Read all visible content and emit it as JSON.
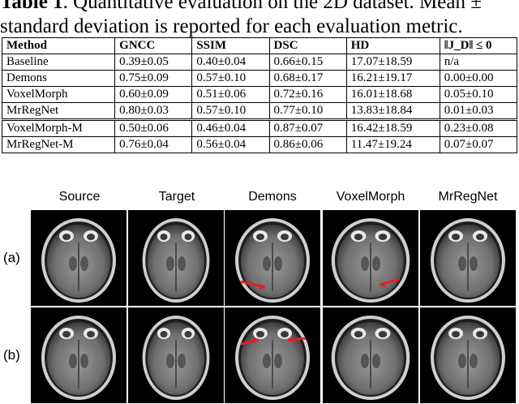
{
  "caption": {
    "label": "Table 1",
    "text": ". Quantitative evaluation on the 2D dataset. Mean ±",
    "text2": "standard deviation is reported for each evaluation metric."
  },
  "table": {
    "headers": [
      "Method",
      "GNCC",
      "SSIM",
      "DSC",
      "HD",
      "‖J_D‖ ≤ 0"
    ],
    "rows": [
      [
        "Baseline",
        "0.39±0.05",
        "0.40±0.04",
        "0.66±0.15",
        "17.07±18.59",
        "n/a"
      ],
      [
        "Demons",
        "0.75±0.09",
        "0.57±0.10",
        "0.68±0.17",
        "16.21±19.17",
        "0.00±0.00"
      ],
      [
        "VoxelMorph",
        "0.60±0.09",
        "0.51±0.06",
        "0.72±0.16",
        "16.01±18.68",
        "0.05±0.10"
      ],
      [
        "MrRegNet",
        "0.80±0.03",
        "0.57±0.10",
        "0.77±0.10",
        "13.83±18.84",
        "0.01±0.03"
      ],
      [
        "VoxelMorph-M",
        "0.50±0.06",
        "0.46±0.04",
        "0.87±0.07",
        "16.42±18.59",
        "0.23±0.08"
      ],
      [
        "MrRegNet-M",
        "0.76±0.04",
        "0.56±0.04",
        "0.86±0.06",
        "11.47±19.24",
        "0.07±0.07"
      ]
    ]
  },
  "figure": {
    "columns": [
      "Source",
      "Target",
      "Demons",
      "VoxelMorph",
      "MrRegNet"
    ],
    "rows": [
      "(a)",
      "(b)"
    ]
  },
  "colors": {
    "arrow": "#e0202a",
    "background": "#ffffff"
  }
}
